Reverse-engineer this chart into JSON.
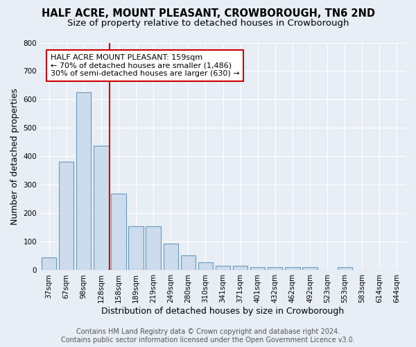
{
  "title": "HALF ACRE, MOUNT PLEASANT, CROWBOROUGH, TN6 2ND",
  "subtitle": "Size of property relative to detached houses in Crowborough",
  "xlabel": "Distribution of detached houses by size in Crowborough",
  "ylabel": "Number of detached properties",
  "categories": [
    "37sqm",
    "67sqm",
    "98sqm",
    "128sqm",
    "158sqm",
    "189sqm",
    "219sqm",
    "249sqm",
    "280sqm",
    "310sqm",
    "341sqm",
    "371sqm",
    "401sqm",
    "432sqm",
    "462sqm",
    "492sqm",
    "523sqm",
    "553sqm",
    "583sqm",
    "614sqm",
    "644sqm"
  ],
  "values": [
    45,
    382,
    625,
    438,
    270,
    155,
    155,
    95,
    52,
    28,
    15,
    15,
    10,
    10,
    10,
    10,
    0,
    10,
    0,
    0,
    0
  ],
  "bar_color": "#ccdcec",
  "bar_edge_color": "#6699bb",
  "vline_x": 3.5,
  "vline_color": "#cc0000",
  "annotation_text": "HALF ACRE MOUNT PLEASANT: 159sqm\n← 70% of detached houses are smaller (1,486)\n30% of semi-detached houses are larger (630) →",
  "annotation_box_color": "#ffffff",
  "annotation_box_edge": "#cc0000",
  "ylim": [
    0,
    800
  ],
  "yticks": [
    0,
    100,
    200,
    300,
    400,
    500,
    600,
    700,
    800
  ],
  "footer": "Contains HM Land Registry data © Crown copyright and database right 2024.\nContains public sector information licensed under the Open Government Licence v3.0.",
  "background_color": "#e8eef5",
  "grid_color": "#ffffff",
  "title_fontsize": 10.5,
  "subtitle_fontsize": 9.5,
  "axis_label_fontsize": 9,
  "tick_fontsize": 7.5,
  "annotation_fontsize": 8,
  "footer_fontsize": 7
}
